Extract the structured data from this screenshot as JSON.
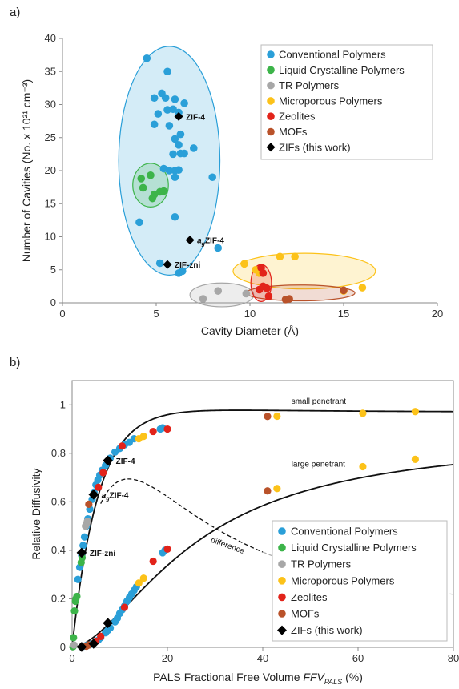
{
  "figure": {
    "panel_a_label": "a)",
    "panel_b_label": "b)"
  },
  "colors": {
    "conventional": "#2a9fd8",
    "liquid_crystalline": "#3cb449",
    "tr": "#a7a7a7",
    "microporous": "#fcc219",
    "zeolites": "#e2231a",
    "mofs": "#b9522a",
    "zifs": "#000000"
  },
  "chart_data": [
    {
      "type": "scatter",
      "panel": "a)",
      "xlabel": "Cavity Diameter (Å)",
      "ylabel": "Number of Cavities (No. x 10²¹ cm⁻³)",
      "xlim": [
        0,
        20
      ],
      "ylim": [
        0,
        40
      ],
      "xticks": [
        "0",
        "5",
        "10",
        "15",
        "20"
      ],
      "yticks": [
        "0",
        "5",
        "10",
        "15",
        "20",
        "25",
        "30",
        "35",
        "40"
      ],
      "grid": false,
      "legend_position": "top-right",
      "legend": [
        "Conventional Polymers",
        "Liquid Crystalline Polymers",
        "TR Polymers",
        "Microporous Polymers",
        "Zeolites",
        "MOFs",
        "ZIFs (this work)"
      ],
      "series": [
        {
          "name": "Conventional Polymers",
          "key": "conventional",
          "points": [
            [
              4.5,
              37
            ],
            [
              5.6,
              35
            ],
            [
              5.3,
              31.7
            ],
            [
              4.9,
              31
            ],
            [
              5.5,
              31
            ],
            [
              6.0,
              30.8
            ],
            [
              6.5,
              30.2
            ],
            [
              5.1,
              28.6
            ],
            [
              5.6,
              29.2
            ],
            [
              5.9,
              29.3
            ],
            [
              6.2,
              28.8
            ],
            [
              4.9,
              27
            ],
            [
              5.7,
              26.8
            ],
            [
              6.3,
              25.5
            ],
            [
              6.0,
              24.8
            ],
            [
              6.2,
              23.9
            ],
            [
              7.0,
              23.4
            ],
            [
              5.9,
              22.5
            ],
            [
              6.3,
              22.6
            ],
            [
              6.5,
              22.6
            ],
            [
              5.4,
              20.3
            ],
            [
              5.7,
              20.0
            ],
            [
              6.0,
              20.0
            ],
            [
              6.2,
              20.1
            ],
            [
              6.0,
              19.0
            ],
            [
              8.0,
              19.0
            ],
            [
              6.0,
              13.0
            ],
            [
              4.1,
              12.2
            ],
            [
              8.3,
              8.3
            ],
            [
              5.2,
              6.0
            ],
            [
              6.2,
              4.5
            ],
            [
              6.4,
              4.8
            ]
          ]
        },
        {
          "name": "Liquid Crystalline Polymers",
          "key": "liquid_crystalline",
          "points": [
            [
              4.2,
              18.8
            ],
            [
              4.7,
              19.3
            ],
            [
              4.9,
              16.4
            ],
            [
              4.8,
              15.8
            ],
            [
              5.2,
              16.8
            ],
            [
              5.4,
              16.9
            ],
            [
              4.3,
              17.4
            ]
          ]
        },
        {
          "name": "TR Polymers",
          "key": "tr",
          "points": [
            [
              7.5,
              0.6
            ],
            [
              8.3,
              1.8
            ],
            [
              9.8,
              1.4
            ]
          ]
        },
        {
          "name": "Microporous Polymers",
          "key": "microporous",
          "points": [
            [
              9.7,
              5.9
            ],
            [
              11.6,
              7.0
            ],
            [
              12.4,
              7.0
            ],
            [
              10.5,
              4.5
            ],
            [
              16.0,
              2.3
            ],
            [
              15.0,
              1.8
            ],
            [
              10.3,
              5.0
            ]
          ]
        },
        {
          "name": "Zeolites",
          "key": "zeolites",
          "points": [
            [
              10.6,
              5.3
            ],
            [
              10.7,
              4.5
            ],
            [
              10.5,
              2.0
            ],
            [
              10.7,
              2.5
            ],
            [
              10.9,
              2.2
            ],
            [
              11.0,
              1.0
            ]
          ]
        },
        {
          "name": "MOFs",
          "key": "mofs",
          "points": [
            [
              11.9,
              0.5
            ],
            [
              12.1,
              0.6
            ],
            [
              15.0,
              1.9
            ]
          ]
        },
        {
          "name": "ZIFs (this work)",
          "key": "zifs",
          "points": [
            [
              6.2,
              28.2
            ],
            [
              6.8,
              9.5
            ],
            [
              5.6,
              5.8
            ]
          ]
        }
      ],
      "annotations": [
        {
          "text": "ZIF-4",
          "x": 6.2,
          "y": 28.2
        },
        {
          "text": "ZIF-4",
          "prefix": "a",
          "sub": "g",
          "x": 6.8,
          "y": 9.5
        },
        {
          "text": "ZIF-zni",
          "x": 5.6,
          "y": 5.8
        }
      ],
      "ellipses": [
        {
          "key": "conventional",
          "cx": 5.7,
          "cy": 21.5,
          "rx": 2.7,
          "ry": 17.3
        },
        {
          "key": "liquid_crystalline",
          "cx": 4.7,
          "cy": 17.8,
          "rx": 0.95,
          "ry": 3.3
        },
        {
          "key": "tr",
          "cx": 8.5,
          "cy": 1.2,
          "rx": 1.7,
          "ry": 1.8
        },
        {
          "key": "microporous",
          "cx": 12.9,
          "cy": 4.8,
          "rx": 3.8,
          "ry": 2.7
        },
        {
          "key": "mofs",
          "cx": 12.7,
          "cy": 1.5,
          "rx": 2.9,
          "ry": 1.2
        },
        {
          "key": "zeolites",
          "cx": 10.6,
          "cy": 3.0,
          "rx": 0.55,
          "ry": 2.8
        }
      ]
    },
    {
      "type": "scatter",
      "panel": "b)",
      "xlabel": "PALS Fractional Free Volume",
      "xlabel_symbol": "FFV",
      "xlabel_symbol_sub": "PALS",
      "xlabel_unit": "(%)",
      "ylabel": "Relative Diffusivity",
      "xlim": [
        0,
        80
      ],
      "ylim": [
        0,
        1.1
      ],
      "xticks": [
        "0",
        "20",
        "40",
        "60",
        "80"
      ],
      "yticks": [
        "0",
        "0.2",
        "0.4",
        "0.6",
        "0.8",
        "1"
      ],
      "grid": false,
      "legend_position": "bottom-right",
      "legend": [
        "Conventional Polymers",
        "Liquid Crystalline Polymers",
        "TR Polymers",
        "Microporous Polymers",
        "Zeolites",
        "MOFs",
        "ZIFs (this work)"
      ],
      "curves": [
        {
          "label": "small penetrant",
          "style": "solid"
        },
        {
          "label": "large penetrant",
          "style": "solid"
        },
        {
          "label": "difference",
          "style": "dashed"
        }
      ],
      "series": [
        {
          "name": "Conventional Polymers",
          "key": "conventional",
          "points": [
            [
              1.2,
              0.28
            ],
            [
              1.6,
              0.33
            ],
            [
              2.0,
              0.38
            ],
            [
              2.3,
              0.42
            ],
            [
              2.6,
              0.455
            ],
            [
              3.0,
              0.5
            ],
            [
              3.3,
              0.53
            ],
            [
              3.7,
              0.57
            ],
            [
              4.2,
              0.61
            ],
            [
              4.6,
              0.64
            ],
            [
              5.0,
              0.67
            ],
            [
              5.4,
              0.69
            ],
            [
              5.8,
              0.71
            ],
            [
              6.3,
              0.73
            ],
            [
              7.0,
              0.75
            ],
            [
              8.0,
              0.78
            ],
            [
              9.0,
              0.805
            ],
            [
              10.0,
              0.82
            ],
            [
              11.0,
              0.835
            ],
            [
              12.0,
              0.845
            ],
            [
              13.0,
              0.86
            ],
            [
              18.5,
              0.9
            ],
            [
              19.0,
              0.905
            ],
            [
              2.5,
              0.005
            ],
            [
              3.0,
              0.008
            ],
            [
              3.5,
              0.01
            ],
            [
              4.0,
              0.013
            ],
            [
              5.5,
              0.03
            ],
            [
              6.0,
              0.04
            ],
            [
              7.0,
              0.06
            ],
            [
              7.5,
              0.07
            ],
            [
              8.0,
              0.08
            ],
            [
              9.0,
              0.105
            ],
            [
              9.5,
              0.12
            ],
            [
              10.0,
              0.14
            ],
            [
              10.5,
              0.155
            ],
            [
              11.0,
              0.17
            ],
            [
              11.5,
              0.19
            ],
            [
              12.0,
              0.205
            ],
            [
              12.5,
              0.22
            ],
            [
              13.0,
              0.235
            ],
            [
              13.5,
              0.25
            ],
            [
              19.0,
              0.39
            ],
            [
              19.5,
              0.4
            ]
          ]
        },
        {
          "name": "Liquid Crystalline Polymers",
          "key": "liquid_crystalline",
          "points": [
            [
              0.3,
              0.04
            ],
            [
              0.5,
              0.15
            ],
            [
              0.7,
              0.19
            ],
            [
              0.8,
              0.2
            ],
            [
              1.0,
              0.21
            ],
            [
              1.9,
              0.35
            ],
            [
              2.1,
              0.37
            ],
            [
              0.2,
              0.003
            ]
          ]
        },
        {
          "name": "TR Polymers",
          "key": "tr",
          "points": [
            [
              2.8,
              0.5
            ],
            [
              3.0,
              0.51
            ],
            [
              3.2,
              0.52
            ],
            [
              0.4,
              0.01
            ]
          ]
        },
        {
          "name": "Microporous Polymers",
          "key": "microporous",
          "points": [
            [
              14.0,
              0.86
            ],
            [
              15.0,
              0.87
            ],
            [
              43.0,
              0.953
            ],
            [
              61.0,
              0.965
            ],
            [
              72.0,
              0.972
            ],
            [
              14.0,
              0.265
            ],
            [
              15.0,
              0.285
            ],
            [
              43.0,
              0.655
            ],
            [
              61.0,
              0.745
            ],
            [
              72.0,
              0.775
            ]
          ]
        },
        {
          "name": "Zeolites",
          "key": "zeolites",
          "points": [
            [
              5.5,
              0.66
            ],
            [
              6.5,
              0.72
            ],
            [
              10.5,
              0.83
            ],
            [
              17.0,
              0.89
            ],
            [
              20.0,
              0.9
            ],
            [
              5.0,
              0.025
            ],
            [
              6.0,
              0.045
            ],
            [
              11.0,
              0.165
            ],
            [
              17.0,
              0.355
            ],
            [
              20.0,
              0.405
            ]
          ]
        },
        {
          "name": "MOFs",
          "key": "mofs",
          "points": [
            [
              3.5,
              0.59
            ],
            [
              4.5,
              0.63
            ],
            [
              41.0,
              0.952
            ],
            [
              41.0,
              0.645
            ],
            [
              3.0,
              0.005
            ],
            [
              3.5,
              0.01
            ]
          ]
        },
        {
          "name": "ZIFs (this work)",
          "key": "zifs",
          "points": [
            [
              7.5,
              0.77
            ],
            [
              4.5,
              0.63
            ],
            [
              2.0,
              0.39
            ],
            [
              7.5,
              0.1
            ],
            [
              4.5,
              0.015
            ],
            [
              2.0,
              0.002
            ]
          ]
        }
      ],
      "annotations": [
        {
          "text": "ZIF-4",
          "x": 7.5,
          "y": 0.77
        },
        {
          "text": "ZIF-4",
          "prefix": "a",
          "sub": "g",
          "x": 4.5,
          "y": 0.63
        },
        {
          "text": "ZIF-zni",
          "x": 2.0,
          "y": 0.39
        }
      ]
    }
  ]
}
